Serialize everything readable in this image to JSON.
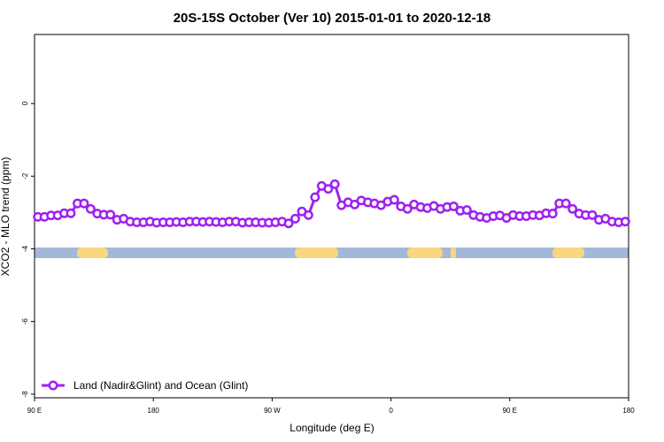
{
  "chart_data": {
    "type": "line",
    "title": "20S-15S October (Ver 10)   2015-01-01 to 2020-12-18",
    "x_label": "Longitude (deg E)",
    "y_label": "XCO2 - MLO trend (ppm)",
    "xlim": [
      90,
      540
    ],
    "ylim": [
      -8.1,
      1.9
    ],
    "xticks": [
      {
        "value": 90,
        "label": "90 E"
      },
      180,
      {
        "value": 270,
        "label": "90 W"
      },
      {
        "value": 360,
        "label": "0"
      },
      {
        "value": 450,
        "label": "90 E"
      },
      {
        "value": 540,
        "label": "180"
      }
    ],
    "yticks": [
      -8,
      -6,
      -4,
      -2,
      0
    ],
    "legend": "bottom-left",
    "x": [
      92.5,
      97.5,
      102.5,
      107.5,
      112.5,
      117.5,
      122.5,
      127.5,
      132.5,
      137.5,
      142.5,
      147.5,
      152.5,
      157.5,
      162.5,
      167.5,
      172.5,
      177.5,
      182.5,
      187.5,
      192.5,
      197.5,
      202.5,
      207.5,
      212.5,
      217.5,
      222.5,
      227.5,
      232.5,
      237.5,
      242.5,
      247.5,
      252.5,
      257.5,
      262.5,
      267.5,
      272.5,
      277.5,
      282.5,
      287.5,
      292.5,
      297.5,
      302.5,
      307.5,
      312.5,
      317.5,
      322.5,
      327.5,
      332.5,
      337.5,
      342.5,
      347.5,
      352.5,
      357.5,
      362.5,
      367.5,
      372.5,
      377.5,
      382.5,
      387.5,
      392.5,
      397.5,
      402.5,
      407.5,
      412.5,
      417.5,
      422.5,
      427.5,
      432.5,
      437.5,
      442.5,
      447.5,
      452.5,
      457.5,
      462.5,
      467.5,
      472.5,
      477.5,
      482.5,
      487.5,
      492.5,
      497.5,
      502.5,
      507.5,
      512.5,
      517.5,
      522.5,
      527.5,
      532.5,
      537.5
    ],
    "series": [
      {
        "name": "Land (Nadir&Glint) and Ocean (Glint)",
        "color": "#a020f0",
        "values": [
          -3.12,
          -3.12,
          -3.08,
          -3.08,
          -3.02,
          -3.02,
          -2.75,
          -2.75,
          -2.9,
          -3.03,
          -3.06,
          -3.06,
          -3.2,
          -3.17,
          -3.25,
          -3.27,
          -3.27,
          -3.25,
          -3.28,
          -3.27,
          -3.27,
          -3.26,
          -3.27,
          -3.25,
          -3.25,
          -3.26,
          -3.25,
          -3.26,
          -3.27,
          -3.25,
          -3.25,
          -3.28,
          -3.27,
          -3.27,
          -3.28,
          -3.28,
          -3.27,
          -3.25,
          -3.3,
          -3.17,
          -2.97,
          -3.07,
          -2.58,
          -2.27,
          -2.35,
          -2.22,
          -2.8,
          -2.72,
          -2.78,
          -2.67,
          -2.72,
          -2.75,
          -2.8,
          -2.7,
          -2.65,
          -2.83,
          -2.9,
          -2.78,
          -2.85,
          -2.88,
          -2.82,
          -2.9,
          -2.85,
          -2.83,
          -2.95,
          -2.93,
          -3.07,
          -3.12,
          -3.15,
          -3.1,
          -3.08,
          -3.15,
          -3.07,
          -3.1,
          -3.1,
          -3.07,
          -3.08,
          -3.02,
          -3.03,
          -2.75,
          -2.75,
          -2.9,
          -3.03,
          -3.07,
          -3.07,
          -3.2,
          -3.17,
          -3.25,
          -3.27,
          -3.25
        ]
      }
    ]
  }
}
